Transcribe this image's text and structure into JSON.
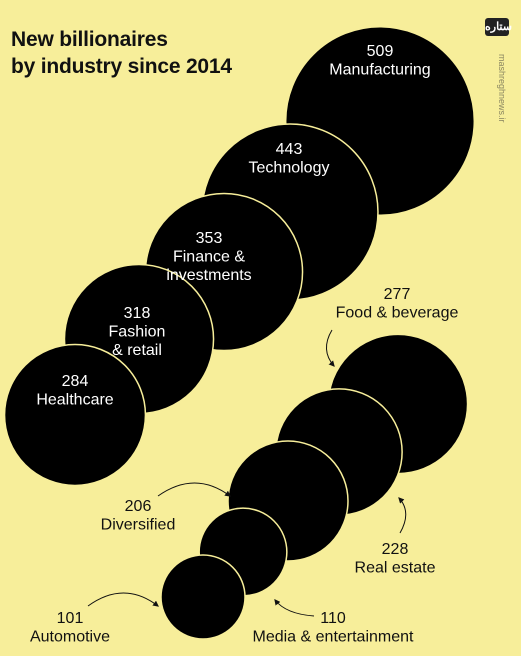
{
  "chart_data": {
    "type": "bubble",
    "title_lines": [
      "New billionaires",
      "by industry since 2014"
    ],
    "categories": [
      "Manufacturing",
      "Technology",
      "Finance & investments",
      "Fashion & retail",
      "Healthcare",
      "Food & beverage",
      "Real estate",
      "Diversified",
      "Media & entertainment",
      "Automotive"
    ],
    "values": [
      509,
      443,
      353,
      318,
      284,
      277,
      228,
      206,
      110,
      101
    ],
    "label_lines": [
      [
        "Manufacturing"
      ],
      [
        "Technology"
      ],
      [
        "Finance &",
        "investments"
      ],
      [
        "Fashion",
        "& retail"
      ],
      [
        "Healthcare"
      ],
      [
        "Food & beverage"
      ],
      [
        "Real estate"
      ],
      [
        "Diversified"
      ],
      [
        "Media & entertainment"
      ],
      [
        "Automotive"
      ]
    ],
    "value_labels": [
      "509",
      "443",
      "353",
      "318",
      "284",
      "277",
      "228",
      "206",
      "110",
      "101"
    ],
    "bubble_color": "#000000",
    "inside_text_color": "#ffffff",
    "outside_text_color": "#111111",
    "background_color": "#F7EE9A"
  },
  "watermark": {
    "logo_text": "ستاره",
    "site": "mashreghnews.ir"
  }
}
